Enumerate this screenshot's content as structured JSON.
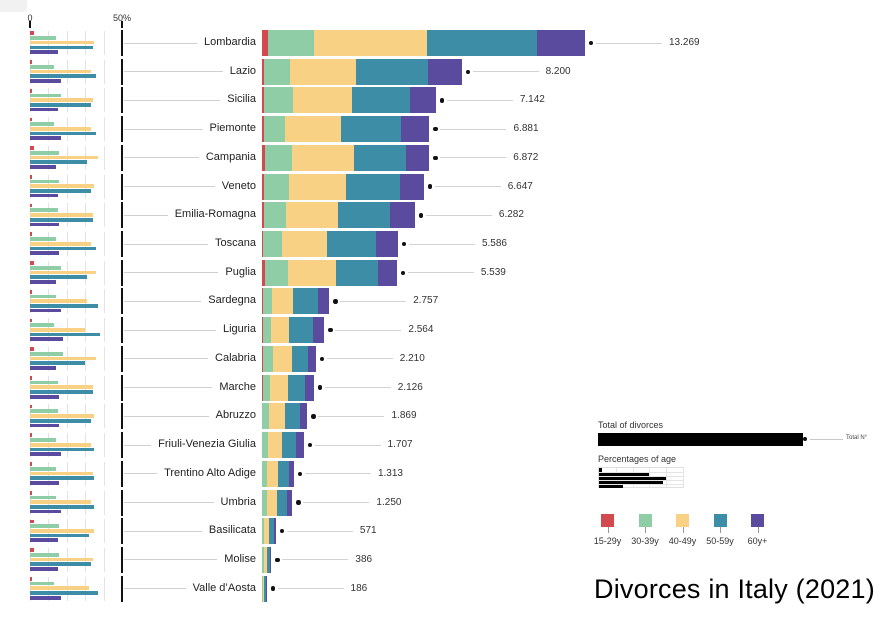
{
  "axis": {
    "zero": "0",
    "fifty": "50%"
  },
  "legend": {
    "total_title": "Total of divorces",
    "total_marker_label": "Total N°",
    "pct_title": "Percentages of age",
    "demo_pct": [
      2,
      30,
      40,
      38,
      14
    ],
    "items": [
      {
        "label": "15-29y",
        "color": "#d2494e"
      },
      {
        "label": "30-39y",
        "color": "#8ecda5"
      },
      {
        "label": "40-49y",
        "color": "#f8d184"
      },
      {
        "label": "50-59y",
        "color": "#3e8da6"
      },
      {
        "label": "60y+",
        "color": "#5a4b9f"
      }
    ]
  },
  "chart_data": {
    "type": "bar",
    "orientation": "horizontal-stacked",
    "title": "Divorces in Italy (2021)",
    "age_groups": [
      "15-29y",
      "30-39y",
      "40-49y",
      "50-59y",
      "60y+"
    ],
    "colors": [
      "#d2494e",
      "#8ecda5",
      "#f8d184",
      "#3e8da6",
      "#5a4b9f"
    ],
    "pct_axis": {
      "min": 0,
      "max": 50,
      "step": 10,
      "tick_labels": [
        "0",
        "50%"
      ]
    },
    "bar_length_encodes": "total divorces",
    "segment_encodes": "percentage of age group (approx, %)",
    "regions": [
      {
        "name": "Lombardia",
        "total": 13269,
        "total_label": "13.269",
        "pct": [
          2,
          14,
          35,
          34,
          15
        ]
      },
      {
        "name": "Lazio",
        "total": 8200,
        "total_label": "8.200",
        "pct": [
          1,
          13,
          33,
          36,
          17
        ]
      },
      {
        "name": "Sicilia",
        "total": 7142,
        "total_label": "7.142",
        "pct": [
          1,
          17,
          34,
          33,
          15
        ]
      },
      {
        "name": "Piemonte",
        "total": 6881,
        "total_label": "6.881",
        "pct": [
          1,
          13,
          33,
          36,
          17
        ]
      },
      {
        "name": "Campania",
        "total": 6872,
        "total_label": "6.872",
        "pct": [
          2,
          16,
          37,
          31,
          14
        ]
      },
      {
        "name": "Veneto",
        "total": 6647,
        "total_label": "6.647",
        "pct": [
          1,
          16,
          35,
          33,
          15
        ]
      },
      {
        "name": "Emilia-Romagna",
        "total": 6282,
        "total_label": "6.282",
        "pct": [
          1,
          15,
          34,
          34,
          16
        ]
      },
      {
        "name": "Toscana",
        "total": 5586,
        "total_label": "5.586",
        "pct": [
          1,
          14,
          33,
          36,
          16
        ]
      },
      {
        "name": "Puglia",
        "total": 5539,
        "total_label": "5.539",
        "pct": [
          2,
          17,
          36,
          31,
          14
        ]
      },
      {
        "name": "Sardegna",
        "total": 2757,
        "total_label": "2.757",
        "pct": [
          1,
          14,
          31,
          37,
          17
        ]
      },
      {
        "name": "Liguria",
        "total": 2564,
        "total_label": "2.564",
        "pct": [
          1,
          13,
          30,
          38,
          18
        ]
      },
      {
        "name": "Calabria",
        "total": 2210,
        "total_label": "2.210",
        "pct": [
          2,
          18,
          36,
          30,
          14
        ]
      },
      {
        "name": "Marche",
        "total": 2126,
        "total_label": "2.126",
        "pct": [
          1,
          15,
          34,
          34,
          16
        ]
      },
      {
        "name": "Abruzzo",
        "total": 1869,
        "total_label": "1.869",
        "pct": [
          1,
          15,
          35,
          33,
          16
        ]
      },
      {
        "name": "Friuli-Venezia Giulia",
        "total": 1707,
        "total_label": "1.707",
        "pct": [
          1,
          14,
          33,
          35,
          17
        ]
      },
      {
        "name": "Trentino Alto Adige",
        "total": 1313,
        "total_label": "1.313",
        "pct": [
          1,
          14,
          34,
          35,
          16
        ]
      },
      {
        "name": "Umbria",
        "total": 1250,
        "total_label": "1.250",
        "pct": [
          1,
          14,
          33,
          35,
          17
        ]
      },
      {
        "name": "Basilicata",
        "total": 571,
        "total_label": "571",
        "pct": [
          2,
          16,
          35,
          32,
          15
        ]
      },
      {
        "name": "Molise",
        "total": 386,
        "total_label": "386",
        "pct": [
          2,
          16,
          34,
          33,
          15
        ]
      },
      {
        "name": "Valle d’Aosta",
        "total": 186,
        "total_label": "186",
        "pct": [
          1,
          13,
          32,
          37,
          17
        ]
      }
    ]
  }
}
